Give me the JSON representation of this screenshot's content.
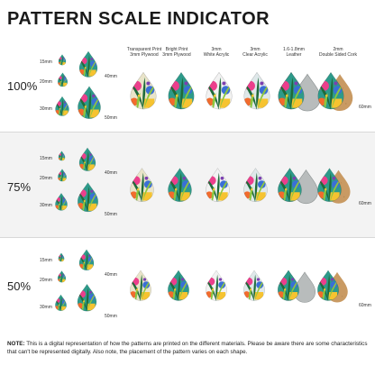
{
  "title": "PATTERN SCALE INDICATOR",
  "rows": [
    {
      "percent": "100%"
    },
    {
      "percent": "75%"
    },
    {
      "percent": "50%"
    }
  ],
  "size_labels": [
    "15mm",
    "20mm",
    "30mm",
    "40mm",
    "50mm"
  ],
  "columns": [
    "Transparent Print\n3mm Plywood",
    "Bright Print\n3mm Plywood",
    "3mm\nWhite Acrylic",
    "3mm\nClear Acrylic",
    "1.6-1.8mm\nLeather",
    "2mm\nDouble Sided Cork"
  ],
  "end_label": "60mm",
  "note": {
    "label": "NOTE:",
    "text": " This is a digital representation of how the patterns are printed on the different materials. Please be aware there are some characteristics that can't be represented digitally. Also note, the placement of the pattern varies on each shape."
  },
  "colors": {
    "pattern_bg": "#2d9a8a",
    "leaf_dark": "#1f6b3a",
    "leaf_light": "#8cc63f",
    "pink": "#ec3f8c",
    "yellow": "#f6c330",
    "orange": "#f26b2d",
    "blue": "#3a6fd6",
    "purple": "#7b3fb0",
    "cork": "#c99a63",
    "leather": "#b8bcbc"
  }
}
